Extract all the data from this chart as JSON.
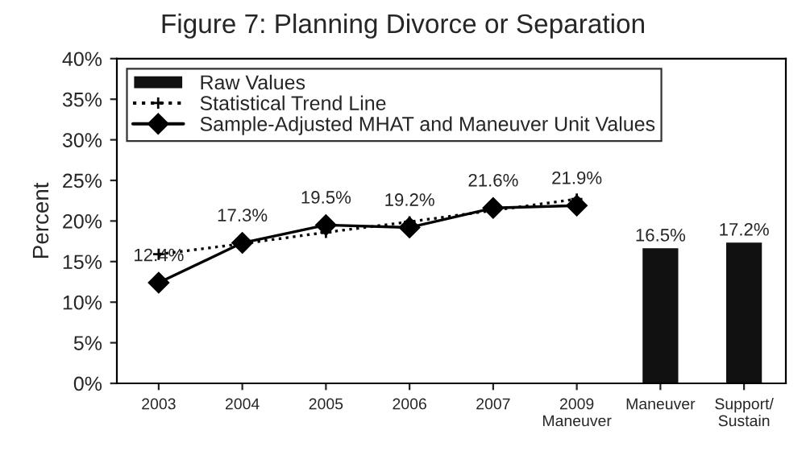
{
  "chart_data": {
    "type": "line",
    "title": "Figure 7: Planning Divorce or Separation",
    "ylabel": "Percent",
    "categories": [
      "2003",
      "2004",
      "2005",
      "2006",
      "2007",
      "2009\nManeuver",
      "Maneuver",
      "Support/\nSustain"
    ],
    "series": [
      {
        "name": "Raw Values",
        "type": "bar",
        "color": "#111111",
        "values": [
          null,
          null,
          null,
          null,
          null,
          null,
          16.5,
          17.2
        ],
        "value_labels": [
          null,
          null,
          null,
          null,
          null,
          null,
          "16.5%",
          "17.2%"
        ]
      },
      {
        "name": "Statistical Trend Line",
        "color": "#000000",
        "line_style": "dotted",
        "marker": "cross",
        "values": [
          15.9,
          17.2,
          18.6,
          19.9,
          21.3,
          22.7,
          null,
          null
        ]
      },
      {
        "name": "Sample-Adjusted MHAT and Maneuver Unit Values",
        "color": "#000000",
        "line_style": "solid",
        "marker": "diamond",
        "values": [
          12.4,
          17.3,
          19.5,
          19.2,
          21.6,
          21.9,
          null,
          null
        ],
        "value_labels": [
          "12.4%",
          "17.3%",
          "19.5%",
          "19.2%",
          "21.6%",
          "21.9%",
          null,
          null
        ]
      }
    ],
    "ylim": [
      0,
      40
    ],
    "yticks": [
      {
        "value": 0,
        "label": "0%"
      },
      {
        "value": 5,
        "label": "5%"
      },
      {
        "value": 10,
        "label": "10%"
      },
      {
        "value": 15,
        "label": "15%"
      },
      {
        "value": 20,
        "label": "20%"
      },
      {
        "value": 25,
        "label": "25%"
      },
      {
        "value": 30,
        "label": "30%"
      },
      {
        "value": 35,
        "label": "35%"
      },
      {
        "value": 40,
        "label": "40%"
      }
    ],
    "grid": false,
    "legend": "top left"
  }
}
